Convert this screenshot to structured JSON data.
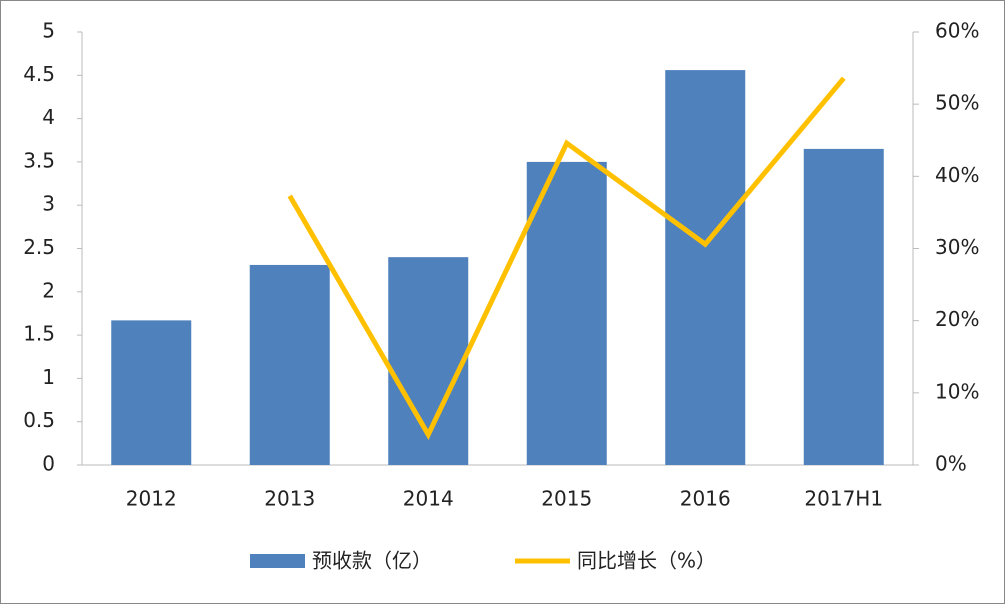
{
  "chart_data": {
    "type": "bar",
    "categories": [
      "2012",
      "2013",
      "2014",
      "2015",
      "2016",
      "2017H1"
    ],
    "series": [
      {
        "name": "预收款（亿）",
        "type": "bar",
        "color": "#4f81bd",
        "values": [
          1.67,
          2.31,
          2.4,
          3.5,
          4.56,
          3.65
        ]
      },
      {
        "name": "同比增长（%）",
        "type": "line",
        "color": "#ffc000",
        "axis": "y2",
        "values": [
          null,
          37.3,
          4.2,
          44.6,
          30.6,
          53.6
        ]
      }
    ],
    "ylim": [
      0,
      5
    ],
    "yticks": [
      0,
      0.5,
      1,
      1.5,
      2,
      2.5,
      3,
      3.5,
      4,
      4.5,
      5
    ],
    "y2lim": [
      0,
      60
    ],
    "y2ticks": [
      {
        "value": 0,
        "label": "0%"
      },
      {
        "value": 10,
        "label": "10%"
      },
      {
        "value": 20,
        "label": "20%"
      },
      {
        "value": 30,
        "label": "30%"
      },
      {
        "value": 40,
        "label": "40%"
      },
      {
        "value": 50,
        "label": "50%"
      },
      {
        "value": 60,
        "label": "60%"
      }
    ],
    "grid": false,
    "legend": "bottom"
  }
}
